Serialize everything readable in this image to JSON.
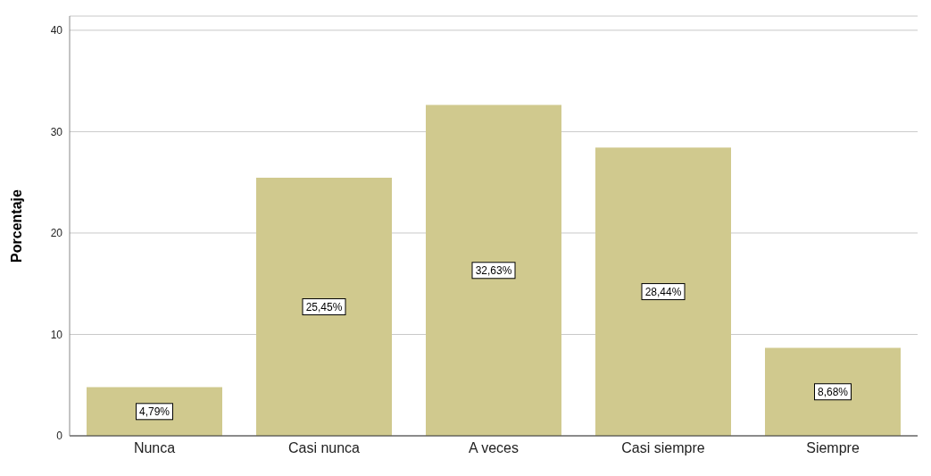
{
  "chart_data": {
    "type": "bar",
    "ylabel": "Porcentaje",
    "categories": [
      "Nunca",
      "Casi nunca",
      "A veces",
      "Casi siempre",
      "Siempre"
    ],
    "values": [
      4.79,
      25.45,
      32.63,
      28.44,
      8.68
    ],
    "value_labels": [
      "4,79%",
      "25,45%",
      "32,63%",
      "28,44%",
      "8,68%"
    ],
    "color": "#d0c98e",
    "ylim": [
      0,
      41.4
    ],
    "yticks": [
      0,
      10,
      20,
      30,
      40
    ],
    "grid": "y"
  }
}
